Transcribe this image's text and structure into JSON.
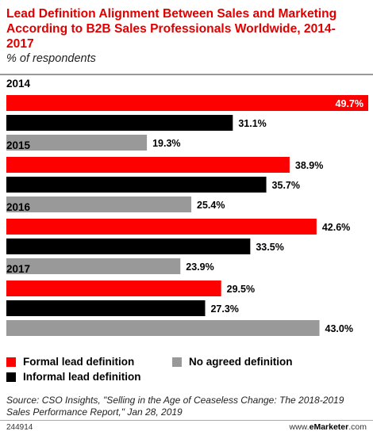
{
  "chart_data": {
    "type": "bar",
    "orientation": "horizontal",
    "title": "Lead Definition Alignment Between Sales and Marketing According to B2B Sales Professionals Worldwide, 2014-2017",
    "subtitle": "% of respondents",
    "categories": [
      "2014",
      "2015",
      "2016",
      "2017"
    ],
    "series": [
      {
        "name": "Formal lead definition",
        "color": "#ff0000",
        "values": [
          49.7,
          38.9,
          42.6,
          29.5
        ]
      },
      {
        "name": "Informal lead definition",
        "color": "#000000",
        "values": [
          31.1,
          35.7,
          33.5,
          27.3
        ]
      },
      {
        "name": "No agreed definition",
        "color": "#999999",
        "values": [
          19.3,
          25.4,
          23.9,
          43.0
        ]
      }
    ],
    "value_labels": [
      [
        "49.7%",
        "31.1%",
        "19.3%"
      ],
      [
        "38.9%",
        "35.7%",
        "25.4%"
      ],
      [
        "42.6%",
        "33.5%",
        "23.9%"
      ],
      [
        "29.5%",
        "27.3%",
        "43.0%"
      ]
    ],
    "xlim": [
      0,
      49.7
    ],
    "grid": false,
    "legend_position": "bottom"
  },
  "source": "Source: CSO Insights, \"Selling in the Age of Ceaseless Change: The 2018-2019 Sales Performance Report,\" Jan 28, 2019",
  "chart_id": "244914",
  "brand": {
    "prefix": "www.",
    "name": "eMarketer",
    "suffix": ".com"
  }
}
